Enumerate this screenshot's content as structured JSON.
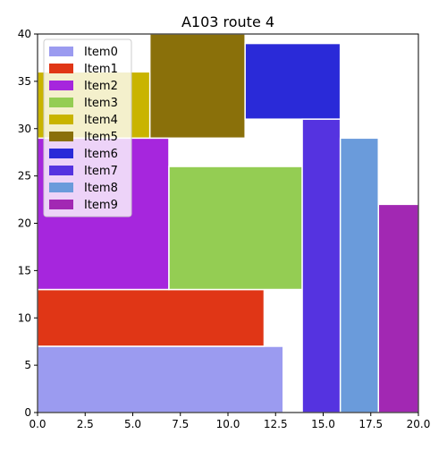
{
  "chart_data": {
    "type": "bar",
    "title": "A103 route 4",
    "xlabel": "",
    "ylabel": "",
    "xlim": [
      0,
      20
    ],
    "ylim": [
      0,
      40
    ],
    "x_ticks": [
      "0.0",
      "2.5",
      "5.0",
      "7.5",
      "10.0",
      "12.5",
      "15.0",
      "17.5",
      "20.0"
    ],
    "x_tick_values": [
      0,
      2.5,
      5,
      7.5,
      10,
      12.5,
      15,
      17.5,
      20
    ],
    "y_ticks": [
      "0",
      "5",
      "10",
      "15",
      "20",
      "25",
      "30",
      "35",
      "40"
    ],
    "y_tick_values": [
      0,
      5,
      10,
      15,
      20,
      25,
      30,
      35,
      40
    ],
    "grid": false,
    "legend_position": "top-left",
    "series": [
      {
        "name": "Item0",
        "color": "#9b9bf0",
        "x0": 0,
        "x1": 12.9,
        "y0": 0,
        "y1": 7
      },
      {
        "name": "Item1",
        "color": "#e03616",
        "x0": 0,
        "x1": 11.9,
        "y0": 7,
        "y1": 13
      },
      {
        "name": "Item2",
        "color": "#a626dd",
        "x0": 0,
        "x1": 6.9,
        "y0": 13,
        "y1": 29
      },
      {
        "name": "Item3",
        "color": "#94cd53",
        "x0": 6.9,
        "x1": 13.9,
        "y0": 13,
        "y1": 26
      },
      {
        "name": "Item4",
        "color": "#c9b400",
        "x0": 0,
        "x1": 5.9,
        "y0": 29,
        "y1": 36
      },
      {
        "name": "Item5",
        "color": "#8a700a",
        "x0": 5.9,
        "x1": 10.9,
        "y0": 29,
        "y1": 40
      },
      {
        "name": "Item6",
        "color": "#2a2ad8",
        "x0": 10.9,
        "x1": 15.9,
        "y0": 31,
        "y1": 39
      },
      {
        "name": "Item7",
        "color": "#5533e0",
        "x0": 13.9,
        "x1": 15.9,
        "y0": 0,
        "y1": 31
      },
      {
        "name": "Item8",
        "color": "#6a9bdb",
        "x0": 15.9,
        "x1": 17.9,
        "y0": 0,
        "y1": 29
      },
      {
        "name": "Item9",
        "color": "#a228b3",
        "x0": 17.9,
        "x1": 20,
        "y0": 0,
        "y1": 22
      }
    ]
  }
}
